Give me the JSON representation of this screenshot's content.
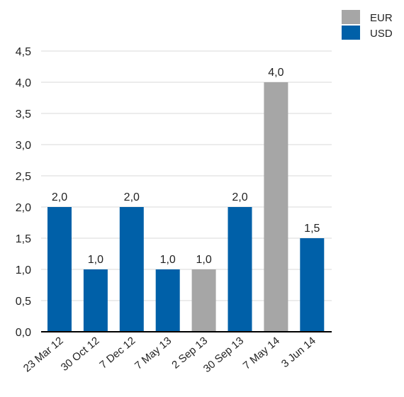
{
  "chart_data": {
    "type": "bar",
    "categories": [
      "23 Mar 12",
      "30 Oct 12",
      "7 Dec 12",
      "7 May 13",
      "2 Sep 13",
      "30 Sep 13",
      "7 May 14",
      "3 Jun 14"
    ],
    "values": [
      2.0,
      1.0,
      2.0,
      1.0,
      1.0,
      2.0,
      4.0,
      1.5
    ],
    "value_labels": [
      "2,0",
      "1,0",
      "2,0",
      "1,0",
      "1,0",
      "2,0",
      "4,0",
      "1,5"
    ],
    "bar_series": [
      "USD",
      "USD",
      "USD",
      "USD",
      "EUR",
      "USD",
      "EUR",
      "USD"
    ],
    "series": [
      {
        "name": "EUR",
        "color": "#a6a6a6"
      },
      {
        "name": "USD",
        "color": "#0060a8"
      }
    ],
    "y_ticks": [
      0,
      0.5,
      1.0,
      1.5,
      2.0,
      2.5,
      3.0,
      3.5,
      4.0,
      4.5
    ],
    "y_tick_labels": [
      "0,0",
      "0,5",
      "1,0",
      "1,5",
      "2,0",
      "2,5",
      "3,0",
      "3,5",
      "4,0",
      "4,5"
    ],
    "ylim": [
      0,
      4.5
    ],
    "grid": true,
    "legend_position": "top-right",
    "title": "",
    "xlabel": "",
    "ylabel": ""
  }
}
